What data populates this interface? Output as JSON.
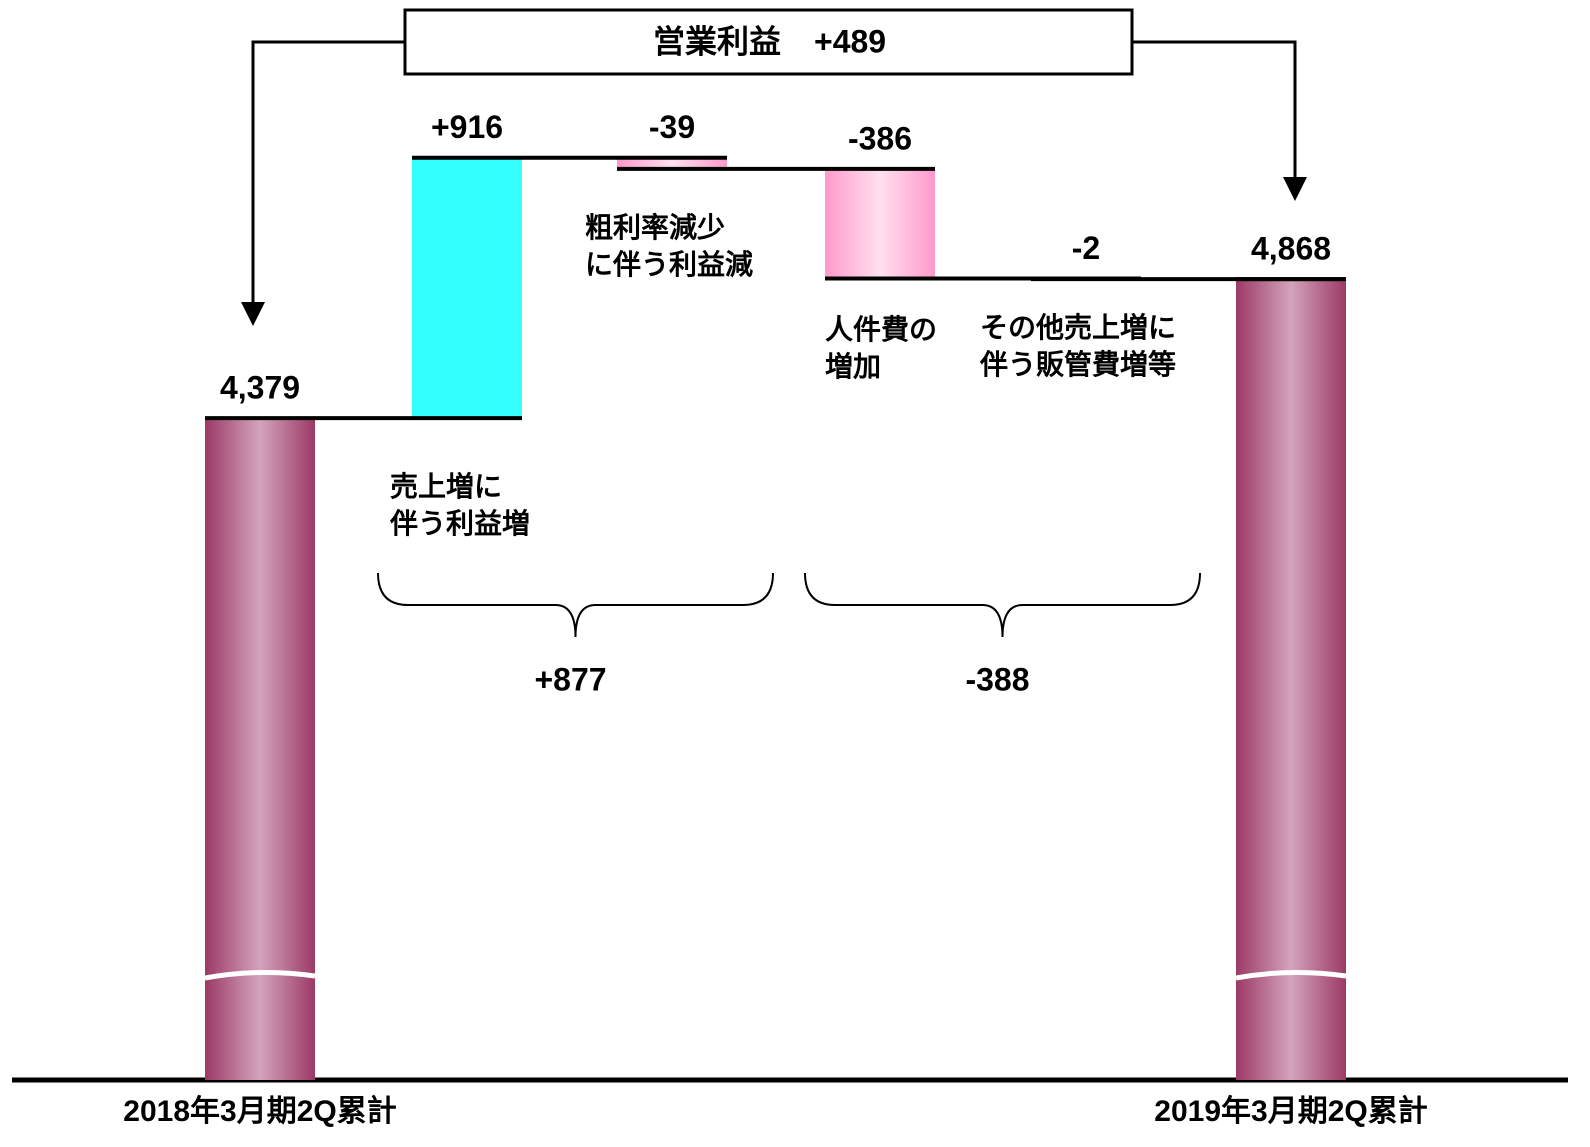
{
  "chart_data": {
    "type": "waterfall",
    "categories": [
      "2018年3月期2Q累計",
      "売上増に\n伴う利益増",
      "粗利率減少\nに伴う利益減",
      "人件費の\n増加",
      "その他売上増に\n伴う販管費増等",
      "2019年3月期2Q累計"
    ],
    "measures": [
      "total",
      "relative",
      "relative",
      "relative",
      "relative",
      "total"
    ],
    "values": [
      4379,
      916,
      -39,
      -386,
      -2,
      4868
    ],
    "value_labels": [
      "4,379",
      "+916",
      "-39",
      "-386",
      "-2",
      "4,868"
    ],
    "colors": {
      "total": "#9b3a66",
      "increase": "#33ffff",
      "decrease": "#ff99cc"
    },
    "ylim": [
      2050,
      5850
    ],
    "axis_break": true,
    "groups": [
      {
        "value": 877,
        "label": "+877"
      },
      {
        "value": -388,
        "label": "-388"
      }
    ],
    "annotation": {
      "text": "営業利益",
      "value": 489,
      "label": "+489"
    }
  }
}
